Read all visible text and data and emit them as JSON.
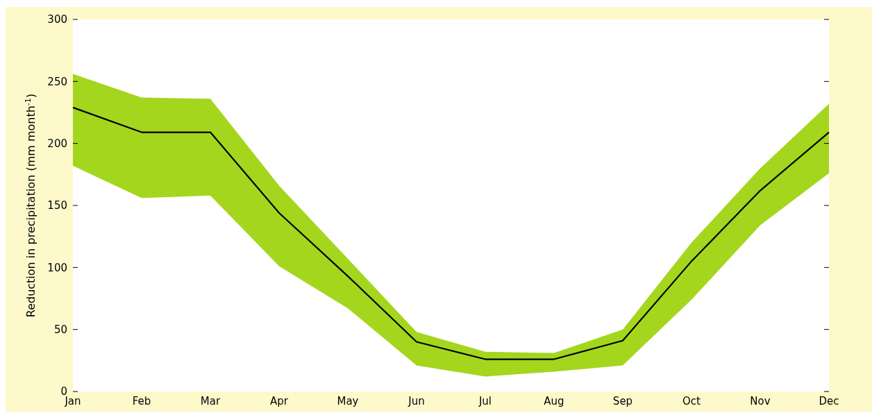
{
  "chart_data": {
    "type": "line",
    "ylabel": "Reduction in precipitation (mm month$^{-1}$)",
    "categories": [
      "Jan",
      "Feb",
      "Mar",
      "Apr",
      "May",
      "Jun",
      "Jul",
      "Aug",
      "Sep",
      "Oct",
      "Nov",
      "Dec"
    ],
    "ylim": [
      0,
      300
    ],
    "yticks": [
      0,
      50,
      100,
      150,
      200,
      250,
      300
    ],
    "marker": "none",
    "line_style": "solid",
    "series": [
      {
        "color": "#000000",
        "values": [
          229,
          209,
          209,
          144,
          93,
          40,
          26,
          26,
          41,
          105,
          162,
          209
        ],
        "lower": [
          182,
          156,
          158,
          101,
          67,
          21,
          12,
          16,
          21,
          74,
          134,
          176
        ],
        "upper": [
          256,
          237,
          236,
          166,
          107,
          48,
          32,
          31,
          50,
          120,
          180,
          232
        ]
      }
    ]
  }
}
